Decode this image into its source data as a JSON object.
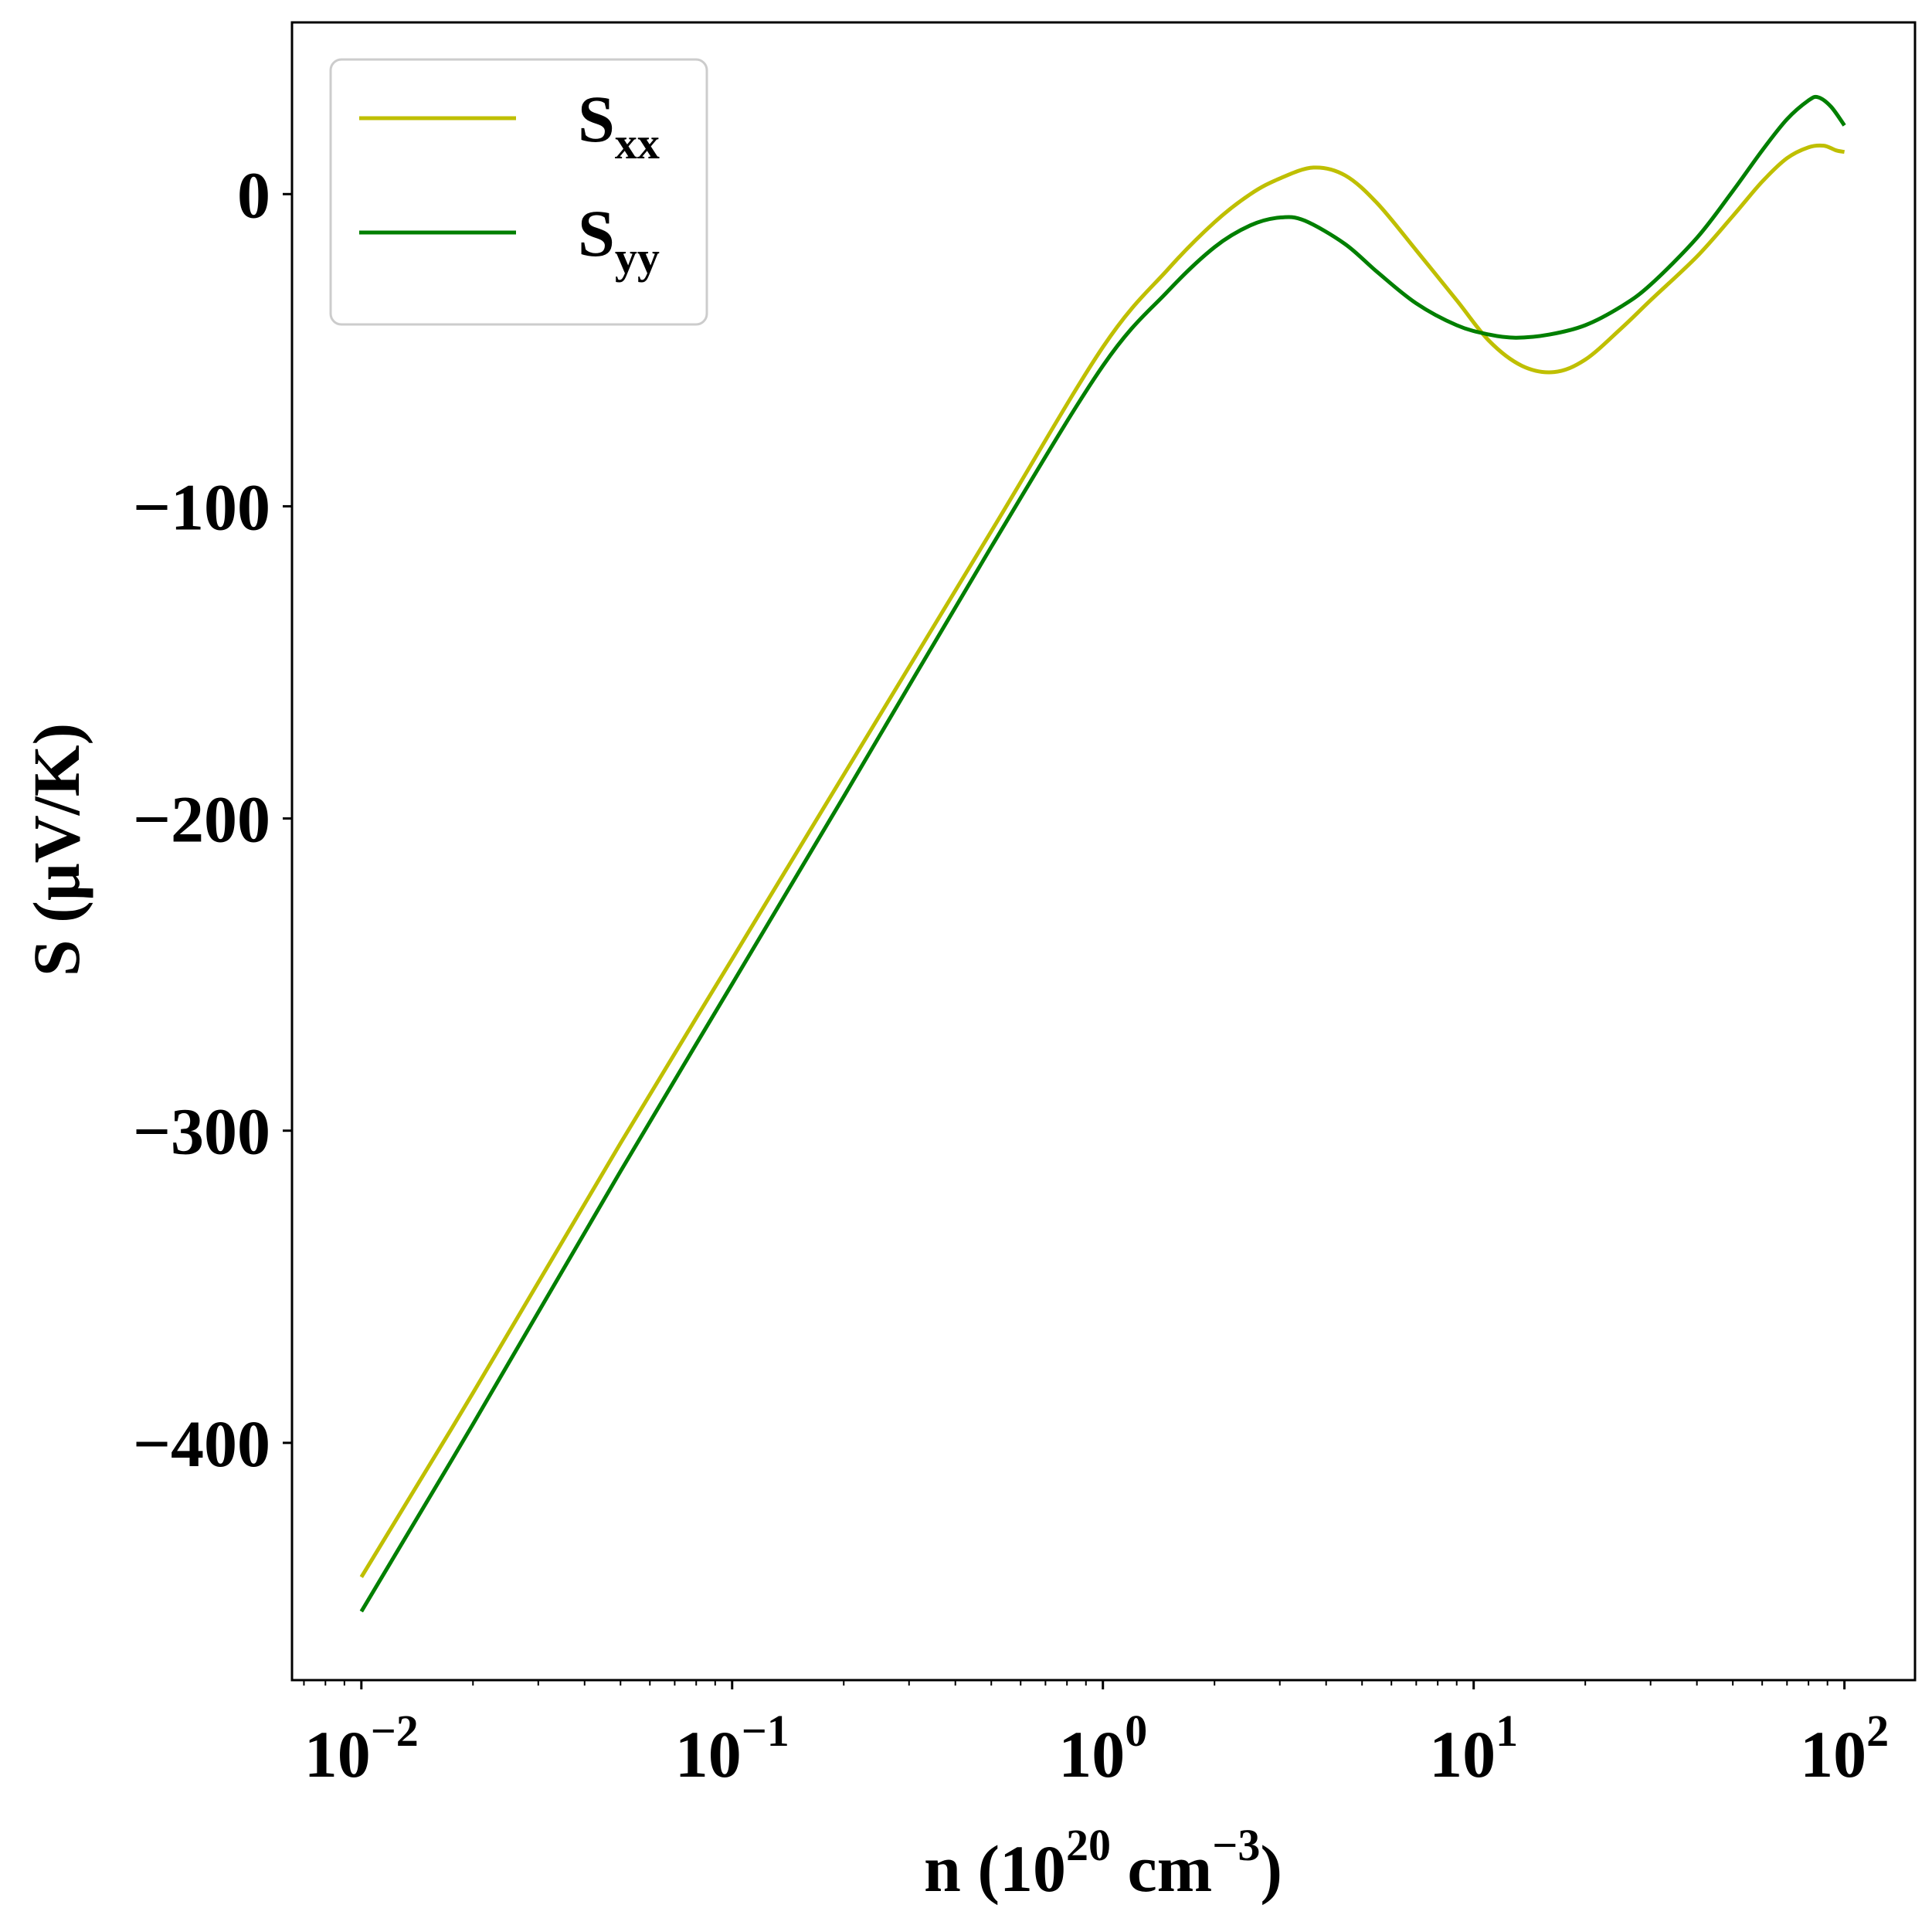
{
  "chart_data": {
    "type": "line",
    "xlabel": {
      "base": "n (10",
      "exp1": "20",
      "mid": " cm",
      "exp2": "−3",
      "end": ")"
    },
    "ylabel": "S (μV/K)",
    "xscale": "log",
    "xlim": [
      0.0065,
      155
    ],
    "ylim": [
      -476,
      55
    ],
    "grid": false,
    "legend_position": "top-left",
    "x_ticks": [
      {
        "value": 0.01,
        "base": "10",
        "exp": "−2"
      },
      {
        "value": 0.1,
        "base": "10",
        "exp": "−1"
      },
      {
        "value": 1,
        "base": "10",
        "exp": "0"
      },
      {
        "value": 10,
        "base": "10",
        "exp": "1"
      },
      {
        "value": 100,
        "base": "10",
        "exp": "2"
      }
    ],
    "y_ticks": [
      {
        "value": 0,
        "label": "0"
      },
      {
        "value": -100,
        "label": "−100"
      },
      {
        "value": -200,
        "label": "−200"
      },
      {
        "value": -300,
        "label": "−300"
      },
      {
        "value": -400,
        "label": "−400"
      }
    ],
    "series": [
      {
        "name": "S",
        "sub": "xx",
        "color": "#bfbf00",
        "x": [
          0.01,
          0.02,
          0.05,
          0.1,
          0.2,
          0.5,
          1.0,
          1.5,
          2.0,
          2.5,
          3.0,
          3.7,
          4.5,
          5.5,
          7.0,
          9.0,
          11.0,
          13.5,
          16.5,
          20,
          25,
          30,
          40,
          50,
          60,
          70,
          80,
          88,
          95,
          100
        ],
        "y": [
          -443,
          -384,
          -304,
          -245,
          -186,
          -108,
          -49,
          -24,
          -9,
          0,
          5,
          8.5,
          6,
          -3,
          -18,
          -34,
          -47,
          -55,
          -57,
          -53,
          -43,
          -34,
          -20,
          -7,
          4,
          11.5,
          15,
          15.5,
          14,
          13.5
        ]
      },
      {
        "name": "S",
        "sub": "yy",
        "color": "#007f00",
        "x": [
          0.01,
          0.02,
          0.05,
          0.1,
          0.2,
          0.5,
          1.0,
          1.5,
          2.0,
          2.5,
          3.0,
          3.5,
          4.5,
          5.5,
          7.0,
          9.0,
          11.0,
          13.0,
          16.0,
          20,
          25,
          30,
          40,
          50,
          60,
          70,
          80,
          85,
          92,
          100
        ],
        "y": [
          -454,
          -394,
          -313,
          -253,
          -193,
          -113,
          -55,
          -31,
          -17,
          -10,
          -7.5,
          -8.5,
          -16,
          -25,
          -35,
          -42,
          -45,
          -46,
          -45,
          -42,
          -36,
          -29,
          -14,
          1,
          14,
          24,
          30,
          31,
          28,
          22
        ]
      }
    ]
  }
}
